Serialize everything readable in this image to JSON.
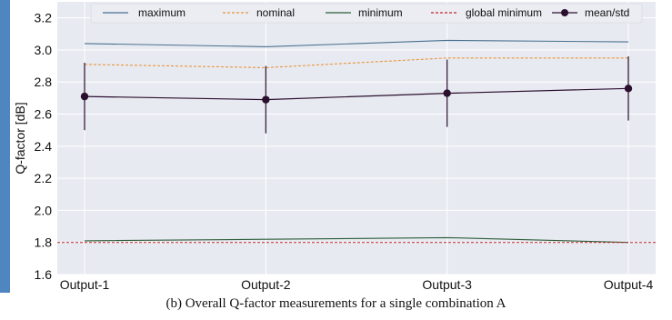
{
  "chart_data": {
    "type": "line",
    "categories": [
      "Output-1",
      "Output-2",
      "Output-3",
      "Output-4"
    ],
    "ylabel": "Q-factor [dB]",
    "xlabel": "",
    "ylim": [
      1.6,
      3.3
    ],
    "yticks": [
      "1.6",
      "1.8",
      "2.0",
      "2.2",
      "2.4",
      "2.6",
      "2.8",
      "3.0",
      "3.2"
    ],
    "grid": true,
    "legend_position": "top",
    "series": [
      {
        "name": "maximum",
        "values": [
          3.04,
          3.02,
          3.06,
          3.05
        ],
        "color": "#4a7090",
        "style": "solid"
      },
      {
        "name": "nominal",
        "values": [
          2.91,
          2.89,
          2.95,
          2.95
        ],
        "color": "#e8943a",
        "style": "dashed"
      },
      {
        "name": "minimum",
        "values": [
          1.81,
          1.82,
          1.83,
          1.8
        ],
        "color": "#2d5e3a",
        "style": "solid"
      },
      {
        "name": "global minimum",
        "values": [
          1.8,
          1.8,
          1.8,
          1.8
        ],
        "color": "#c02a2a",
        "style": "dashed"
      }
    ],
    "errorbar_series": {
      "name": "mean/std",
      "values": [
        2.71,
        2.69,
        2.73,
        2.76
      ],
      "std": [
        0.21,
        0.21,
        0.21,
        0.2
      ],
      "color": "#2a0f2e"
    }
  },
  "caption": "(b)  Overall Q-factor measurements for a single combination A"
}
